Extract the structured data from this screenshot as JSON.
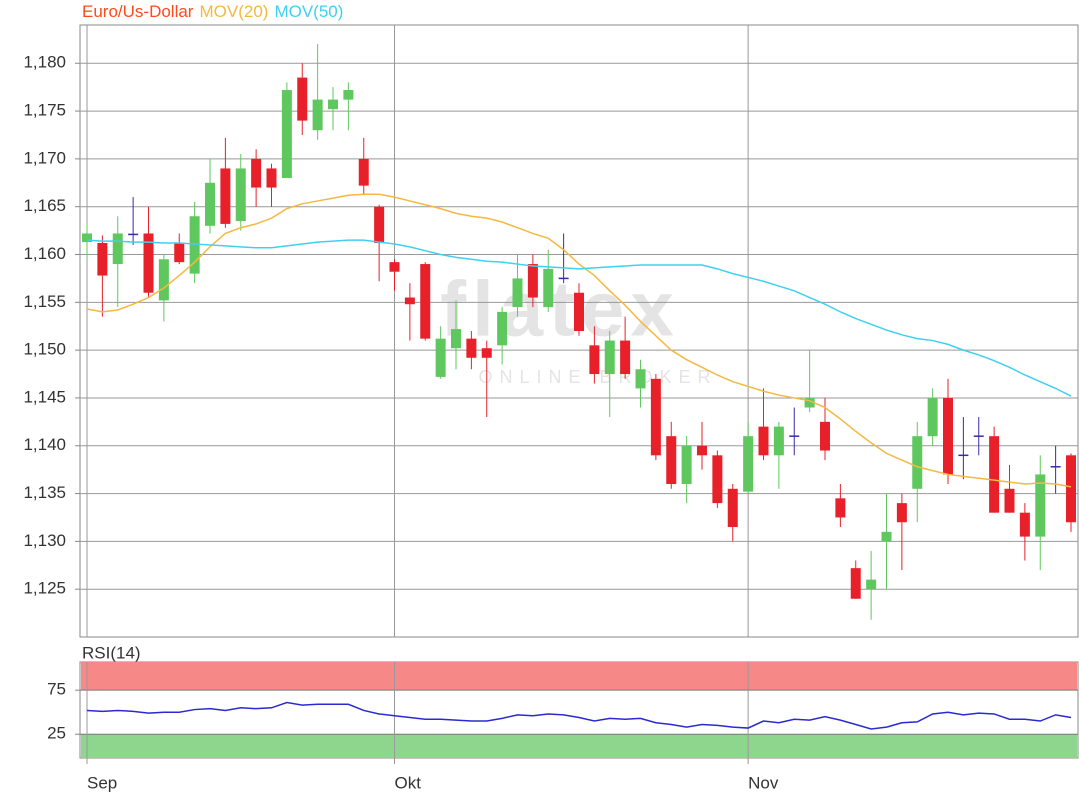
{
  "chart_data": [
    {
      "type": "candlestick",
      "watermark": {
        "brand": "flatex",
        "tagline": "ONLINE BROKER"
      },
      "categories": [
        "Sep",
        null,
        null,
        null,
        null,
        null,
        null,
        null,
        null,
        null,
        null,
        null,
        null,
        null,
        null,
        null,
        null,
        null,
        null,
        null,
        "Okt",
        null,
        null,
        null,
        null,
        null,
        null,
        null,
        null,
        null,
        null,
        null,
        null,
        null,
        null,
        null,
        null,
        null,
        null,
        null,
        null,
        null,
        null,
        "Nov",
        null,
        null,
        null,
        null,
        null,
        null,
        null,
        null,
        null,
        null,
        null,
        null,
        null,
        null,
        null,
        null,
        null,
        null,
        null,
        null,
        null
      ],
      "series": [
        {
          "name": "Euro/Us-Dollar",
          "color": "#ff4a1c",
          "up_color": "#5ec85e",
          "down_color": "#e8202a",
          "doji_color": "#3a2aa8",
          "open": [
            1.1613,
            1.1612,
            1.159,
            1.1621,
            1.1622,
            1.1552,
            1.1612,
            1.158,
            1.163,
            1.169,
            1.1635,
            1.17,
            1.169,
            1.168,
            1.1785,
            1.173,
            1.1752,
            1.1762,
            1.17,
            1.165,
            1.1592,
            1.1555,
            1.159,
            1.1472,
            1.1502,
            1.1512,
            1.1502,
            1.1505,
            1.1545,
            1.159,
            1.1545,
            1.1575,
            1.156,
            1.1505,
            1.1475,
            1.151,
            1.146,
            1.147,
            1.141,
            1.136,
            1.14,
            1.139,
            1.1355,
            1.1352,
            1.142,
            1.139,
            1.141,
            1.144,
            1.1425,
            1.1345,
            1.1272,
            1.125,
            1.13,
            1.134,
            1.1355,
            1.141,
            1.145,
            1.139,
            1.141,
            1.141,
            1.1355,
            1.133,
            1.1305,
            1.1378,
            1.139
          ],
          "high": [
            1.1632,
            1.162,
            1.164,
            1.166,
            1.165,
            1.16,
            1.1622,
            1.1655,
            1.17,
            1.1722,
            1.1705,
            1.171,
            1.1695,
            1.178,
            1.18,
            1.182,
            1.1775,
            1.178,
            1.1722,
            1.1652,
            1.1595,
            1.157,
            1.1592,
            1.1525,
            1.1552,
            1.152,
            1.151,
            1.1545,
            1.16,
            1.16,
            1.1605,
            1.1622,
            1.157,
            1.1525,
            1.152,
            1.1535,
            1.149,
            1.1475,
            1.1425,
            1.141,
            1.1425,
            1.1395,
            1.136,
            1.1425,
            1.146,
            1.1425,
            1.144,
            1.15,
            1.145,
            1.136,
            1.128,
            1.129,
            1.135,
            1.135,
            1.1425,
            1.146,
            1.147,
            1.143,
            1.143,
            1.142,
            1.138,
            1.134,
            1.139,
            1.14,
            1.1392
          ],
          "low": [
            1.1595,
            1.1535,
            1.1545,
            1.161,
            1.1555,
            1.153,
            1.159,
            1.157,
            1.1622,
            1.1628,
            1.1625,
            1.165,
            1.165,
            1.168,
            1.1725,
            1.172,
            1.173,
            1.173,
            1.1662,
            1.1572,
            1.1562,
            1.151,
            1.151,
            1.147,
            1.148,
            1.148,
            1.143,
            1.1485,
            1.1535,
            1.1545,
            1.154,
            1.157,
            1.1515,
            1.1465,
            1.143,
            1.147,
            1.144,
            1.1385,
            1.1355,
            1.134,
            1.1375,
            1.1335,
            1.13,
            1.135,
            1.1385,
            1.1355,
            1.139,
            1.1435,
            1.1385,
            1.1315,
            1.124,
            1.1218,
            1.125,
            1.127,
            1.132,
            1.14,
            1.136,
            1.1365,
            1.139,
            1.133,
            1.133,
            1.128,
            1.127,
            1.135,
            1.131
          ],
          "close": [
            1.1622,
            1.1578,
            1.1622,
            1.1621,
            1.156,
            1.1595,
            1.1592,
            1.164,
            1.1675,
            1.1632,
            1.169,
            1.167,
            1.167,
            1.1772,
            1.174,
            1.1762,
            1.1762,
            1.1772,
            1.1672,
            1.1612,
            1.1582,
            1.1548,
            1.1512,
            1.1512,
            1.1522,
            1.1492,
            1.1492,
            1.154,
            1.1575,
            1.1555,
            1.1585,
            1.1575,
            1.152,
            1.1475,
            1.151,
            1.1475,
            1.148,
            1.139,
            1.136,
            1.14,
            1.139,
            1.134,
            1.1315,
            1.141,
            1.139,
            1.142,
            1.141,
            1.145,
            1.1395,
            1.1325,
            1.124,
            1.126,
            1.131,
            1.132,
            1.141,
            1.145,
            1.137,
            1.139,
            1.141,
            1.133,
            1.133,
            1.1305,
            1.137,
            1.1378,
            1.132
          ]
        },
        {
          "name": "MOV(20)",
          "color": "#f5b841",
          "values": [
            1.1543,
            1.154,
            1.1542,
            1.1548,
            1.1555,
            1.1565,
            1.1578,
            1.1592,
            1.1608,
            1.1622,
            1.1628,
            1.1632,
            1.1638,
            1.1648,
            1.1653,
            1.1656,
            1.1659,
            1.1662,
            1.1663,
            1.1663,
            1.166,
            1.1656,
            1.1652,
            1.1648,
            1.1643,
            1.164,
            1.1638,
            1.1634,
            1.1628,
            1.1622,
            1.1617,
            1.1605,
            1.159,
            1.1578,
            1.1562,
            1.1547,
            1.153,
            1.1515,
            1.15,
            1.149,
            1.1482,
            1.1474,
            1.1467,
            1.1462,
            1.1457,
            1.1453,
            1.145,
            1.1447,
            1.144,
            1.1428,
            1.1415,
            1.1403,
            1.1392,
            1.1385,
            1.1378,
            1.1374,
            1.137,
            1.1368,
            1.1366,
            1.1364,
            1.1362,
            1.136,
            1.1361,
            1.136,
            1.1357
          ]
        },
        {
          "name": "MOV(50)",
          "color": "#3fd0f0",
          "values": [
            1.1615,
            1.1614,
            1.1614,
            1.1613,
            1.1613,
            1.1612,
            1.1612,
            1.1611,
            1.161,
            1.1609,
            1.1608,
            1.1607,
            1.1607,
            1.1609,
            1.1611,
            1.1613,
            1.1614,
            1.1615,
            1.1615,
            1.1613,
            1.1611,
            1.1608,
            1.1604,
            1.16,
            1.1597,
            1.1595,
            1.1593,
            1.1592,
            1.159,
            1.1588,
            1.1587,
            1.1586,
            1.1585,
            1.1586,
            1.1587,
            1.1588,
            1.1589,
            1.1589,
            1.1589,
            1.1589,
            1.1589,
            1.1585,
            1.158,
            1.1576,
            1.1572,
            1.1567,
            1.1562,
            1.1555,
            1.1548,
            1.154,
            1.1533,
            1.1527,
            1.1521,
            1.1516,
            1.1512,
            1.151,
            1.1506,
            1.15,
            1.1495,
            1.1489,
            1.1482,
            1.1474,
            1.1467,
            1.146,
            1.1452
          ]
        }
      ],
      "ylim": [
        1.12,
        1.184
      ],
      "yticks": [
        {
          "value": 1.125,
          "label": "1,125"
        },
        {
          "value": 1.13,
          "label": "1,130"
        },
        {
          "value": 1.135,
          "label": "1,135"
        },
        {
          "value": 1.14,
          "label": "1,140"
        },
        {
          "value": 1.145,
          "label": "1,145"
        },
        {
          "value": 1.15,
          "label": "1,150"
        },
        {
          "value": 1.155,
          "label": "1,155"
        },
        {
          "value": 1.16,
          "label": "1,160"
        },
        {
          "value": 1.165,
          "label": "1,165"
        },
        {
          "value": 1.17,
          "label": "1,170"
        },
        {
          "value": 1.175,
          "label": "1,175"
        },
        {
          "value": 1.18,
          "label": "1,180"
        }
      ],
      "grid": true
    },
    {
      "type": "line",
      "series": [
        {
          "name": "RSI(14)",
          "color": "#2a2ad0",
          "values": [
            52,
            51,
            52,
            51,
            49,
            50,
            50,
            53,
            54,
            52,
            55,
            54,
            55,
            61,
            58,
            59,
            59,
            59,
            52,
            48,
            46,
            44,
            42,
            42,
            41,
            40,
            40,
            43,
            47,
            46,
            48,
            47,
            44,
            40,
            43,
            42,
            43,
            38,
            36,
            33,
            36,
            35,
            33,
            32,
            40,
            38,
            42,
            41,
            45,
            41,
            36,
            31,
            33,
            38,
            39,
            48,
            50,
            47,
            49,
            48,
            42,
            42,
            40,
            47,
            44
          ]
        }
      ],
      "ylim": [
        -2,
        107
      ],
      "yticks": [
        25,
        75
      ],
      "upper_band_color": "#f78888",
      "lower_band_color": "#8ed68e"
    }
  ]
}
